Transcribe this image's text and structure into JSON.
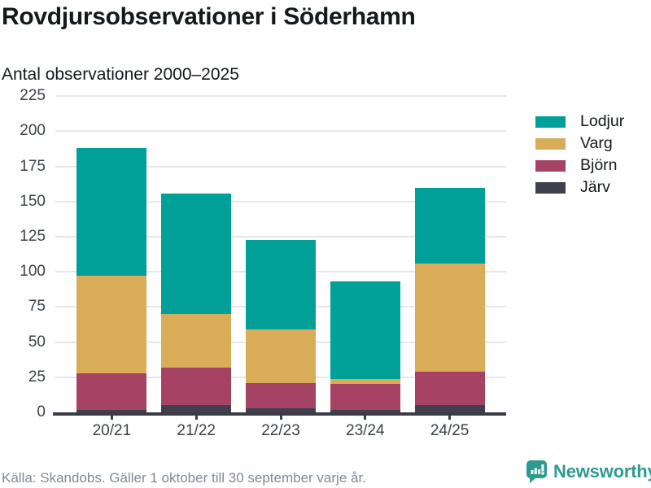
{
  "title": "Rovdjursobservationer i Söderhamn",
  "subtitle": "Antal observationer 2000–2025",
  "footer": {
    "source": "Källa: Skandobs. Gäller 1 oktober till 30 september varje år."
  },
  "branding": {
    "name": "Newsworthy",
    "logo_icon": "bar-chart-speech-bubble-icon",
    "color": "#2e9b8e"
  },
  "colors": {
    "lodjur": "#00a099",
    "varg": "#d9ac57",
    "bjorn": "#a64364",
    "jarv": "#3f404e",
    "axis": "#3b3b45",
    "gridline": "#e7e7e7",
    "tick_label": "#3b4248",
    "text": "#14191b",
    "source_text": "#808a96"
  },
  "chart_data": {
    "type": "bar",
    "stacked": true,
    "categories": [
      "20/21",
      "21/22",
      "22/23",
      "23/24",
      "24/25"
    ],
    "series": [
      {
        "name": "Järv",
        "color_key": "jarv",
        "values": [
          2,
          5,
          3,
          2,
          5
        ]
      },
      {
        "name": "Björn",
        "color_key": "bjorn",
        "values": [
          26,
          27,
          18,
          18,
          24
        ]
      },
      {
        "name": "Varg",
        "color_key": "varg",
        "values": [
          69,
          38,
          38,
          4,
          77
        ]
      },
      {
        "name": "Lodjur",
        "color_key": "lodjur",
        "values": [
          91,
          86,
          64,
          69,
          54
        ]
      }
    ],
    "totals": [
      188,
      156,
      123,
      93,
      160
    ],
    "title": "Rovdjursobservationer i Söderhamn",
    "subtitle": "Antal observationer 2000–2025",
    "xlabel": "",
    "ylabel": "Antal observationer",
    "ylim": [
      0,
      225
    ],
    "yticks": [
      0,
      25,
      50,
      75,
      100,
      125,
      150,
      175,
      200,
      225
    ],
    "grid": true,
    "legend": [
      "Lodjur",
      "Varg",
      "Björn",
      "Järv"
    ],
    "legend_position": "right"
  }
}
